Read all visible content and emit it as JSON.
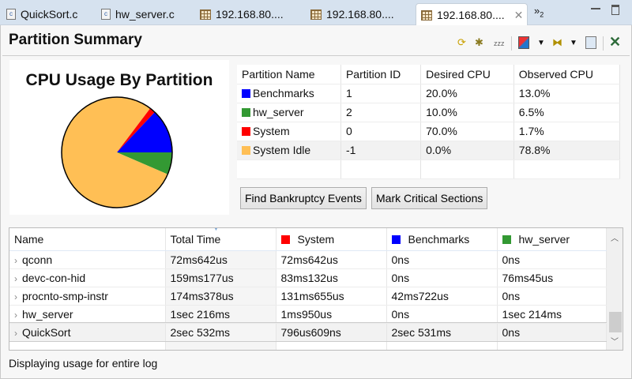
{
  "tabs": [
    {
      "label": "QuickSort.c",
      "icon": "c-file-icon"
    },
    {
      "label": "hw_server.c",
      "icon": "c-file-icon"
    },
    {
      "label": "192.168.80....",
      "icon": "trace-log-icon"
    },
    {
      "label": "192.168.80....",
      "icon": "trace-log-icon"
    },
    {
      "label": "192.168.80....",
      "icon": "trace-log-icon",
      "active": true
    }
  ],
  "overflow_count": "2",
  "title": "Partition Summary",
  "toolbar": {
    "sleep_label": "zzz"
  },
  "pie": {
    "title": "CPU Usage By Partition"
  },
  "partition_table": {
    "headers": [
      "Partition Name",
      "Partition ID",
      "Desired CPU",
      "Observed CPU"
    ],
    "rows": [
      {
        "name": "Benchmarks",
        "color": "#0000ff",
        "id": "1",
        "desired": "20.0%",
        "observed": "13.0%"
      },
      {
        "name": "hw_server",
        "color": "#339933",
        "id": "2",
        "desired": "10.0%",
        "observed": "6.5%"
      },
      {
        "name": "System",
        "color": "#ff0000",
        "id": "0",
        "desired": "70.0%",
        "observed": "1.7%"
      },
      {
        "name": "System Idle",
        "color": "#ffbf55",
        "id": "-1",
        "desired": "0.0%",
        "observed": "78.8%"
      }
    ]
  },
  "chart_data": {
    "type": "pie",
    "title": "CPU Usage By Partition",
    "labels": [
      "hw_server",
      "System Idle",
      "System",
      "Benchmarks"
    ],
    "values": [
      6.5,
      78.8,
      1.7,
      13.0
    ],
    "colors": [
      "#339933",
      "#ffbf55",
      "#ff0000",
      "#0000ff"
    ]
  },
  "buttons": {
    "bankruptcy": "Find Bankruptcy Events",
    "critical": "Mark Critical Sections"
  },
  "usage_table": {
    "headers": [
      "Name",
      "Total Time",
      "System",
      "Benchmarks",
      "hw_server"
    ],
    "rows": [
      [
        "qconn",
        "72ms642us",
        "72ms642us",
        "0ns",
        "0ns"
      ],
      [
        "devc-con-hid",
        "159ms177us",
        "83ms132us",
        "0ns",
        "76ms45us"
      ],
      [
        "procnto-smp-instr",
        "174ms378us",
        "131ms655us",
        "42ms722us",
        "0ns"
      ],
      [
        "hw_server",
        "1sec 216ms",
        "1ms950us",
        "0ns",
        "1sec 214ms"
      ],
      [
        "QuickSort",
        "2sec 532ms",
        "796us609ns",
        "2sec 531ms",
        "0ns"
      ]
    ]
  },
  "status": "Displaying usage for entire log"
}
